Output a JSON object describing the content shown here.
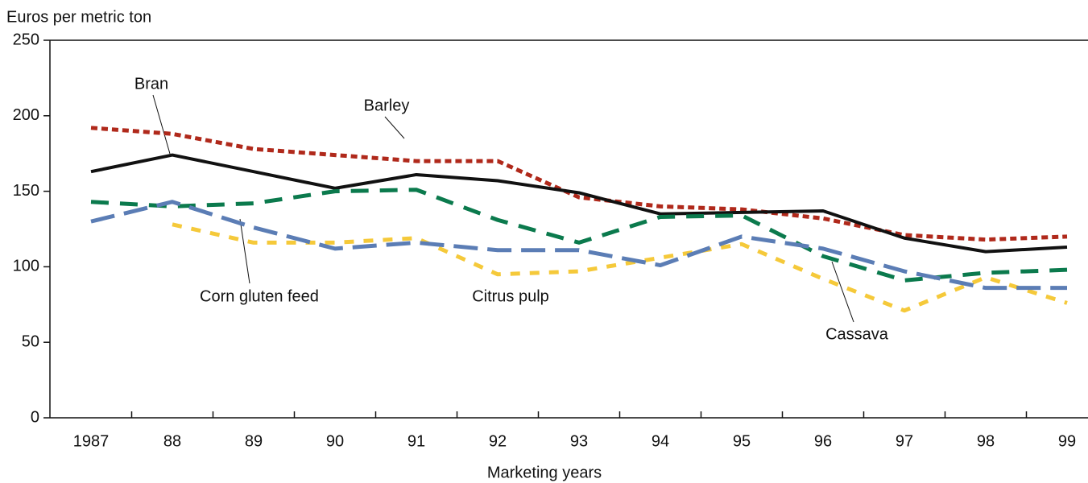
{
  "chart_data": {
    "type": "line",
    "y_label": "Euros per metric ton",
    "x_label": "Marketing years",
    "categories": [
      "1987",
      "88",
      "89",
      "90",
      "91",
      "92",
      "93",
      "94",
      "95",
      "96",
      "97",
      "98",
      "99"
    ],
    "ylim": [
      0,
      250
    ],
    "yticks": [
      0,
      50,
      100,
      150,
      200,
      250
    ],
    "grid": false,
    "series": [
      {
        "name": "Barley",
        "color": "#b0291b",
        "dash": "8,5",
        "values": [
          192,
          188,
          178,
          174,
          170,
          170,
          146,
          140,
          138,
          132,
          121,
          118,
          120
        ]
      },
      {
        "name": "Bran",
        "color": "#111111",
        "dash": "none",
        "values": [
          163,
          174,
          163,
          152,
          161,
          157,
          149,
          135,
          136,
          137,
          119,
          110,
          113
        ]
      },
      {
        "name": "Cassava",
        "color": "#0b7a4d",
        "dash": "22,14",
        "values": [
          143,
          140,
          142,
          150,
          151,
          131,
          116,
          133,
          134,
          107,
          91,
          96,
          98
        ]
      },
      {
        "name": "Citrus pulp",
        "color": "#f5c93a",
        "dash": "12,12",
        "values": [
          null,
          128,
          116,
          116,
          119,
          95,
          97,
          106,
          115,
          92,
          71,
          93,
          76
        ]
      },
      {
        "name": "Corn gluten feed",
        "color": "#5b7db5",
        "dash": "30,12",
        "values": [
          130,
          143,
          126,
          112,
          116,
          111,
          111,
          101,
          120,
          112,
          97,
          86,
          86
        ]
      }
    ]
  }
}
